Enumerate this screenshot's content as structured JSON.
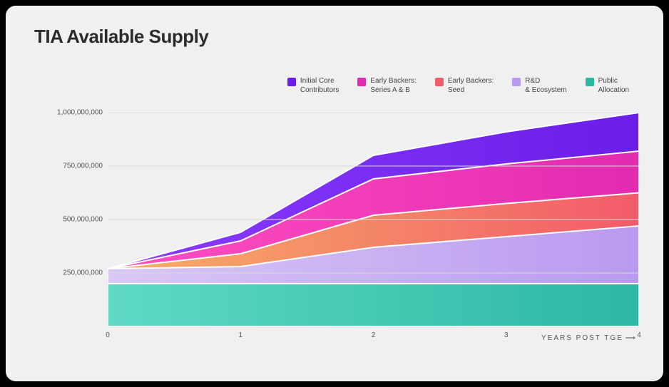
{
  "title": "TIA Available Supply",
  "chart": {
    "type": "stacked-area",
    "background_color": "#f0f0f0",
    "xlabel": "YEARS POST TGE",
    "xlim": [
      0,
      4
    ],
    "xticks": [
      0,
      1,
      2,
      3,
      4
    ],
    "ylim": [
      0,
      1000000000
    ],
    "yticks": [
      250000000,
      500000000,
      750000000,
      1000000000
    ],
    "ytick_labels": [
      "250,000,000",
      "500,000,000",
      "750,000,000",
      "1,000,000,000"
    ],
    "grid_color": "#d8d8d8",
    "series": [
      {
        "name": "Public Allocation",
        "legend_label": "Public\nAllocation",
        "color_start": "#5fd9c6",
        "color_end": "#2bb8a3",
        "cumulative": [
          200000000,
          200000000,
          200000000,
          200000000,
          200000000
        ]
      },
      {
        "name": "R&D & Ecosystem",
        "legend_label": "R&D\n& Ecosystem",
        "color_start": "#d9c8f5",
        "color_end": "#b99af0",
        "cumulative": [
          270000000,
          280000000,
          370000000,
          420000000,
          470000000
        ]
      },
      {
        "name": "Early Backers: Seed",
        "legend_label": "Early Backers:\nSeed",
        "color_start": "#f7b066",
        "color_end": "#f25b6a",
        "cumulative": [
          270000000,
          340000000,
          520000000,
          575000000,
          625000000
        ]
      },
      {
        "name": "Early Backers: Series A & B",
        "legend_label": "Early Backers:\nSeries A & B",
        "color_start": "#ff4fc2",
        "color_end": "#e22bb0",
        "cumulative": [
          270000000,
          400000000,
          690000000,
          760000000,
          820000000
        ]
      },
      {
        "name": "Initial Core Contributors",
        "legend_label": "Initial Core\nContributors",
        "color_start": "#8a3cff",
        "color_end": "#6a1ee6",
        "cumulative": [
          270000000,
          440000000,
          800000000,
          910000000,
          1000000000
        ]
      }
    ],
    "legend": {
      "swatch_size": 12,
      "fontsize": 10
    }
  }
}
